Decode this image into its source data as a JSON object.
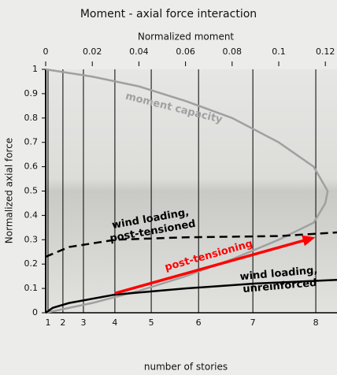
{
  "chart_data": {
    "type": "line",
    "title": "Moment - axial force interaction",
    "x_label": "Normalized moment",
    "x2_label": "number of stories",
    "y_label": "Normalized axial force",
    "xlim": [
      0,
      0.125
    ],
    "xticks": [
      0,
      0.02,
      0.04,
      0.06,
      0.08,
      0.1,
      0.12
    ],
    "x2ticks": [
      {
        "value": 0.001,
        "label": "1"
      },
      {
        "value": 0.0074,
        "label": "2"
      },
      {
        "value": 0.0162,
        "label": "3"
      },
      {
        "value": 0.0297,
        "label": "4"
      },
      {
        "value": 0.0453,
        "label": "5"
      },
      {
        "value": 0.0656,
        "label": "6"
      },
      {
        "value": 0.0889,
        "label": "7"
      },
      {
        "value": 0.1159,
        "label": "8"
      }
    ],
    "ylim": [
      0,
      1
    ],
    "yticks": [
      1,
      0.9,
      0.8,
      0.7,
      0.6,
      0.5,
      0.4,
      0.3,
      0.2,
      0.1,
      0
    ],
    "series": [
      {
        "color": "#a0a0a0",
        "dash": false,
        "x": [
          0,
          0.02,
          0.04,
          0.06,
          0.08,
          0.1,
          0.115,
          0.121,
          0.12,
          0.115,
          0.1,
          0.08,
          0.06,
          0.04,
          0.02,
          0
        ],
        "values": [
          1,
          0.97,
          0.93,
          0.87,
          0.8,
          0.7,
          0.6,
          0.5,
          0.45,
          0.37,
          0.3,
          0.22,
          0.15,
          0.09,
          0.04,
          0
        ]
      },
      {
        "color": "#000000",
        "dash": true,
        "x": [
          0,
          0.01,
          0.03,
          0.06,
          0.1,
          0.125
        ],
        "values": [
          0.23,
          0.27,
          0.3,
          0.31,
          0.315,
          0.33
        ]
      },
      {
        "color": "#000000",
        "dash": false,
        "x": [
          0,
          0.003,
          0.01,
          0.03,
          0.06,
          0.09,
          0.125
        ],
        "values": [
          0,
          0.02,
          0.04,
          0.075,
          0.1,
          0.12,
          0.135
        ]
      }
    ],
    "arrow": {
      "label": "post-tensioning",
      "color": "#ff0000",
      "x": [
        0.0297,
        0.1157
      ],
      "values": [
        0.08,
        0.31
      ]
    },
    "annotations": [
      {
        "lines": [
          "moment capacity"
        ],
        "color": "#a0a0a0",
        "x": 0.055,
        "y": 0.84,
        "angle": 14
      },
      {
        "lines": [
          "wind loading,",
          "post-tensioned"
        ],
        "color": "#000000",
        "x": 0.045,
        "y": 0.385,
        "angle": -10
      },
      {
        "lines": [
          "wind loading,",
          "unreinforced"
        ],
        "color": "#000000",
        "x": 0.1,
        "y": 0.16,
        "angle": -5
      }
    ]
  }
}
